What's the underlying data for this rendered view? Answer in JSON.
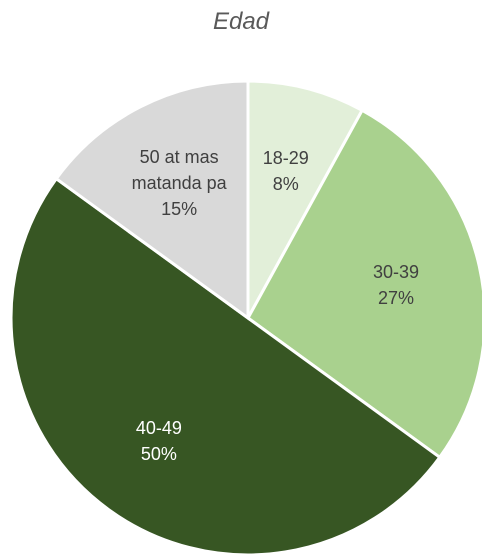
{
  "chart_data": {
    "type": "pie",
    "title": "Edad",
    "categories": [
      "18-29",
      "30-39",
      "40-49",
      "50 at mas matanda pa"
    ],
    "values": [
      8,
      27,
      50,
      15
    ],
    "value_labels": [
      "8%",
      "27%",
      "50%",
      "15%"
    ],
    "colors": [
      "#e2efd9",
      "#a9d18e",
      "#375623",
      "#d9d9d9"
    ]
  }
}
